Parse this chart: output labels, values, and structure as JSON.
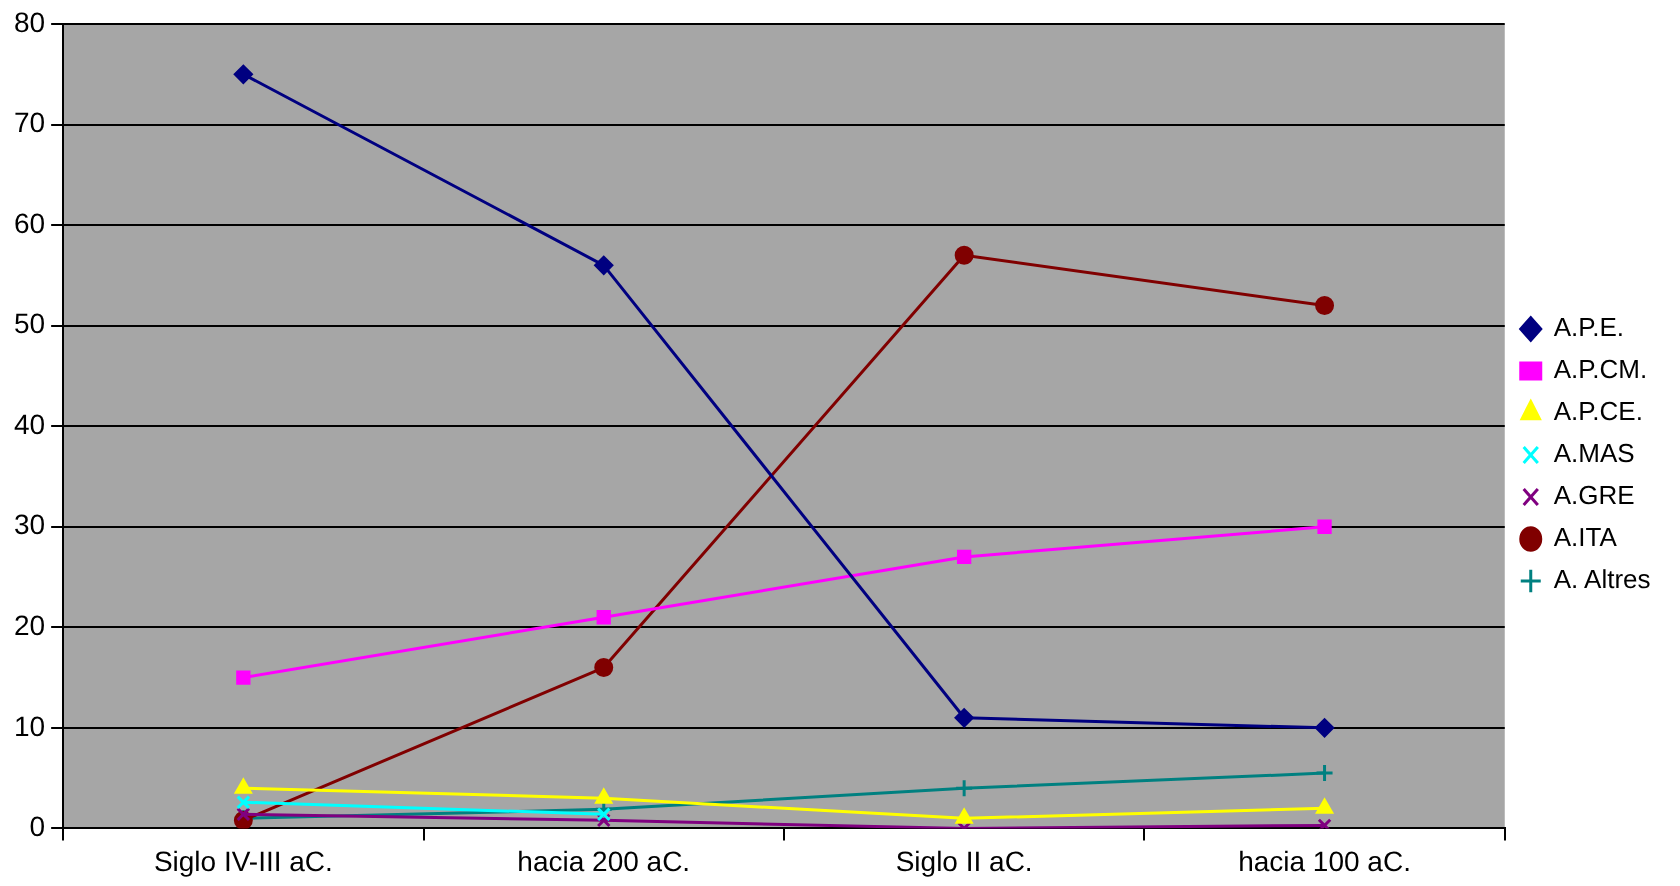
{
  "chart_data": {
    "type": "line",
    "categories": [
      "Siglo IV-III aC.",
      "hacia 200 aC.",
      "Siglo II aC.",
      "hacia 100 aC."
    ],
    "series": [
      {
        "name": "A.P.E.",
        "color": "#000080",
        "marker": "diamond",
        "values": [
          75,
          56,
          11,
          10
        ]
      },
      {
        "name": "A.P.CM.",
        "color": "#ff00ff",
        "marker": "square",
        "values": [
          15,
          21,
          27,
          30
        ]
      },
      {
        "name": "A.P.CE.",
        "color": "#ffff00",
        "marker": "triangle",
        "values": [
          4,
          3,
          1,
          2
        ]
      },
      {
        "name": "A.MAS",
        "color": "#00ffff",
        "marker": "cross",
        "values": [
          2.6,
          1.4,
          null,
          null
        ]
      },
      {
        "name": "A.GRE",
        "color": "#800080",
        "marker": "cross",
        "values": [
          1.4,
          0.8,
          0,
          0.3
        ]
      },
      {
        "name": "A.ITA",
        "color": "#800000",
        "marker": "circle",
        "values": [
          0.8,
          16,
          57,
          52
        ]
      },
      {
        "name": "A. Altres",
        "color": "#008080",
        "marker": "plus",
        "values": [
          1,
          1.9,
          4,
          5.5
        ]
      }
    ],
    "ylim": [
      0,
      80
    ],
    "yticks": [
      0,
      10,
      20,
      30,
      40,
      50,
      60,
      70,
      80
    ],
    "grid": "y",
    "legend": "right",
    "line_style": "solid"
  }
}
